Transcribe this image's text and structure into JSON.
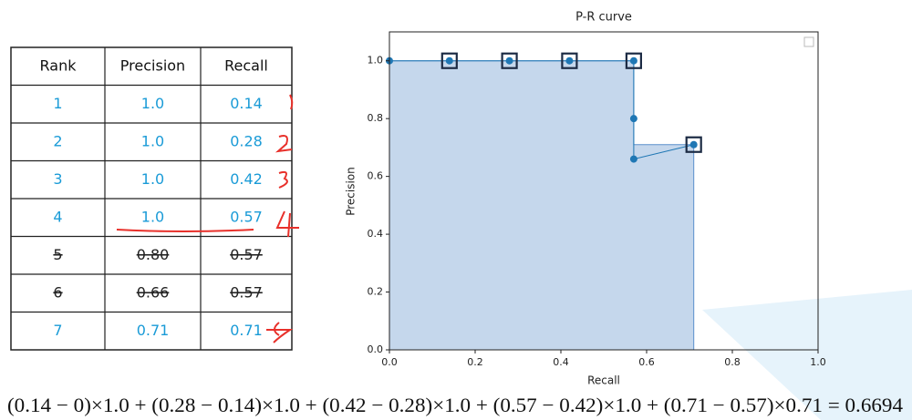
{
  "table": {
    "header": [
      "Rank",
      "Precision",
      "Recall"
    ],
    "rows": [
      [
        "1",
        "1.0",
        "0.14"
      ],
      [
        "2",
        "1.0",
        "0.28"
      ],
      [
        "3",
        "1.0",
        "0.42"
      ],
      [
        "4",
        "1.0",
        "0.57"
      ],
      [
        "5",
        "0.80",
        "0.57"
      ],
      [
        "6",
        "0.66",
        "0.57"
      ],
      [
        "7",
        "0.71",
        "0.71"
      ]
    ],
    "struck_rows": [
      4,
      5
    ],
    "color": "#1a9bd7",
    "struck_color": "#222222"
  },
  "chart_data": {
    "type": "line",
    "title": "P-R curve",
    "xlabel": "Recall",
    "ylabel": "Precision",
    "xlim": [
      0,
      1
    ],
    "ylim": [
      0,
      1.1
    ],
    "xticks": [
      {
        "value": 0,
        "label": "0.0"
      },
      0.2,
      0.4,
      0.6,
      0.8,
      {
        "value": 1,
        "label": "1.0"
      }
    ],
    "yticks": [
      {
        "value": 0,
        "label": "0.0"
      },
      0.2,
      0.4,
      0.6,
      0.8,
      {
        "value": 1,
        "label": "1.0"
      }
    ],
    "series": [
      {
        "kind": "area",
        "color": "#c5d7ec",
        "x": [
          0,
          0.57,
          0.57,
          0.71,
          0.71
        ],
        "values": [
          1,
          1,
          0.71,
          0.71,
          0
        ]
      },
      {
        "kind": "line",
        "color": "#1f77b4",
        "x": [
          0,
          0.14,
          0.28,
          0.42,
          0.57,
          0.57,
          0.57,
          0.71
        ],
        "values": [
          1,
          1,
          1,
          1,
          1,
          0.8,
          0.66,
          0.71
        ]
      },
      {
        "kind": "squares",
        "color": "#1c2b44",
        "x": [
          0.14,
          0.28,
          0.42,
          0.57,
          0.71
        ],
        "values": [
          1,
          1,
          1,
          1,
          0.71
        ]
      }
    ]
  },
  "formula": {
    "text": "(0.14 − 0)×1.0 + (0.28 − 0.14)×1.0 + (0.42 − 0.28)×1.0 + (0.57 − 0.42)×1.0 + (0.71 − 0.57)×0.71 = 0.6694"
  }
}
